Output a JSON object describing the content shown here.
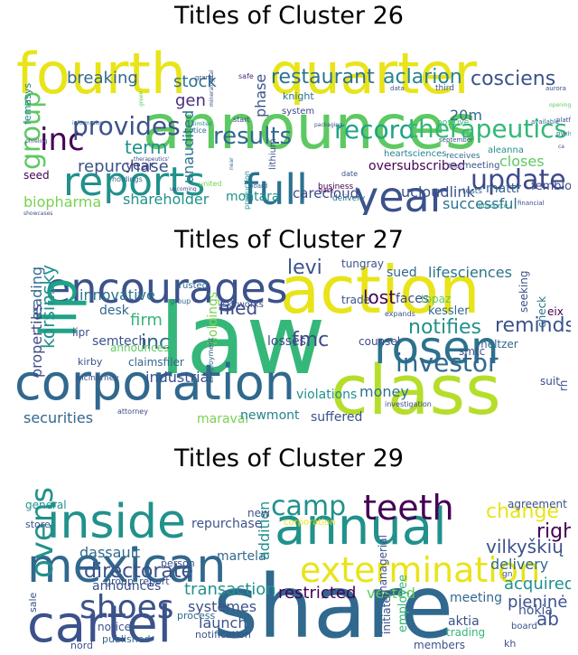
{
  "chart_data": [
    {
      "type": "wordcloud",
      "title": "Titles of Cluster 26",
      "words": [
        {
          "text": "fourth",
          "color": "#E8E419"
        },
        {
          "text": "quarter",
          "color": "#E8E419"
        },
        {
          "text": "announces",
          "color": "#5EC962"
        },
        {
          "text": "full",
          "color": "#2C728E"
        },
        {
          "text": "year",
          "color": "#3B528B"
        },
        {
          "text": "reports",
          "color": "#21918C"
        },
        {
          "text": "inc",
          "color": "#440154"
        },
        {
          "text": "group",
          "color": "#5EC962"
        },
        {
          "text": "provides",
          "color": "#3B528B"
        },
        {
          "text": "results",
          "color": "#31688E"
        },
        {
          "text": "record",
          "color": "#20A387"
        },
        {
          "text": "therapeutics",
          "color": "#35B779"
        },
        {
          "text": "update",
          "color": "#3E4A89"
        },
        {
          "text": "repurchase",
          "color": "#3B528B"
        },
        {
          "text": "term",
          "color": "#21918C"
        },
        {
          "text": "restaurant",
          "color": "#2C728E"
        },
        {
          "text": "aclarion",
          "color": "#26828E"
        },
        {
          "text": "cosciens",
          "color": "#3B528B"
        },
        {
          "text": "stock",
          "color": "#2C728E"
        },
        {
          "text": "breaking",
          "color": "#31688E"
        },
        {
          "text": "gen",
          "color": "#472D7B"
        },
        {
          "text": "phase",
          "color": "#3B528B"
        },
        {
          "text": "unaudited",
          "color": "#2C728E"
        },
        {
          "text": "shareholder",
          "color": "#21918C"
        },
        {
          "text": "biopharma",
          "color": "#7AD151"
        },
        {
          "text": "closes",
          "color": "#5EC962"
        },
        {
          "text": "oversubscribed",
          "color": "#440154"
        },
        {
          "text": "mattr",
          "color": "#31688E"
        },
        {
          "text": "fembloc",
          "color": "#3E4A89"
        },
        {
          "text": "successful",
          "color": "#2C728E"
        },
        {
          "text": "ucloudlink",
          "color": "#3B528B"
        },
        {
          "text": "carecloud",
          "color": "#3E4A89"
        },
        {
          "text": "montara",
          "color": "#21918C"
        },
        {
          "text": "20m",
          "color": "#31688E"
        },
        {
          "text": "seed",
          "color": "#440154"
        },
        {
          "text": "year",
          "color": "#433E85"
        },
        {
          "text": "femasys",
          "color": "#26828E"
        },
        {
          "text": "knight",
          "color": "#2C728E"
        },
        {
          "text": "system",
          "color": "#3E4A89"
        },
        {
          "text": "heartsciences",
          "color": "#26828E"
        },
        {
          "text": "aleanna",
          "color": "#21918C"
        },
        {
          "text": "meeting",
          "color": "#3B528B"
        },
        {
          "text": "receives",
          "color": "#31688E"
        },
        {
          "text": "business",
          "color": "#440154"
        },
        {
          "text": "delivery",
          "color": "#2C728E"
        },
        {
          "text": "lithium",
          "color": "#3B528B"
        },
        {
          "text": "production",
          "color": "#21918C"
        },
        {
          "text": "holdings",
          "color": "#31688E"
        },
        {
          "text": "notice",
          "color": "#2C728E"
        },
        {
          "text": "third",
          "color": "#3B528B"
        },
        {
          "text": "positive",
          "color": "#35B779"
        },
        {
          "text": "tests",
          "color": "#31688E"
        },
        {
          "text": "date",
          "color": "#3B528B"
        },
        {
          "text": "united",
          "color": "#7AD151"
        },
        {
          "text": "start",
          "color": "#3E4A89"
        },
        {
          "text": "safe",
          "color": "#472D7B"
        },
        {
          "text": "grand",
          "color": "#3B528B"
        },
        {
          "text": "financial",
          "color": "#3B528B"
        },
        {
          "text": "altisource",
          "color": "#21918C"
        },
        {
          "text": "base",
          "color": "#440154"
        },
        {
          "text": "board",
          "color": "#31688E"
        },
        {
          "text": "final",
          "color": "#3B528B"
        },
        {
          "text": "september",
          "color": "#3B528B"
        },
        {
          "text": "platform",
          "color": "#3E4A89"
        },
        {
          "text": "available",
          "color": "#31688E"
        },
        {
          "text": "aurora",
          "color": "#3B528B"
        },
        {
          "text": "data",
          "color": "#3B528B"
        },
        {
          "text": "pyxis",
          "color": "#31688E"
        },
        {
          "text": "upcoming",
          "color": "#3E4A89"
        },
        {
          "text": "showcases",
          "color": "#3B528B"
        },
        {
          "text": "information",
          "color": "#31688E"
        },
        {
          "text": "phreling",
          "color": "#3B528B"
        },
        {
          "text": "mineralogical",
          "color": "#3E4A89"
        },
        {
          "text": "limited",
          "color": "#21918C"
        },
        {
          "text": "green",
          "color": "#5EC962"
        },
        {
          "text": "packaging",
          "color": "#3B528B"
        },
        {
          "text": "near",
          "color": "#31688E"
        },
        {
          "text": "therapeutics'",
          "color": "#3E4A89"
        },
        {
          "text": "ca",
          "color": "#3B528B"
        },
        {
          "text": "opening",
          "color": "#5EC962"
        }
      ]
    },
    {
      "type": "wordcloud",
      "title": "Titles of Cluster 27",
      "words": [
        {
          "text": "law",
          "color": "#35B779"
        },
        {
          "text": "action",
          "color": "#E8E419"
        },
        {
          "text": "class",
          "color": "#B5DE2B"
        },
        {
          "text": "corporation",
          "color": "#31688E"
        },
        {
          "text": "encourages",
          "color": "#3B528B"
        },
        {
          "text": "rosen",
          "color": "#2C728E"
        },
        {
          "text": "llp",
          "color": "#20A387"
        },
        {
          "text": "investor",
          "color": "#31688E"
        },
        {
          "text": "notifies",
          "color": "#21918C"
        },
        {
          "text": "reminds",
          "color": "#3B528B"
        },
        {
          "text": "fmc",
          "color": "#3E4A89"
        },
        {
          "text": "inc",
          "color": "#31688E"
        },
        {
          "text": "firm",
          "color": "#35B779"
        },
        {
          "text": "filed",
          "color": "#3E4A89"
        },
        {
          "text": "levi",
          "color": "#3B528B"
        },
        {
          "text": "lifesciences",
          "color": "#2C728E"
        },
        {
          "text": "sued",
          "color": "#31688E"
        },
        {
          "text": "tungray",
          "color": "#3B528B"
        },
        {
          "text": "innovative",
          "color": "#2C728E"
        },
        {
          "text": "korsinsky",
          "color": "#21918C"
        },
        {
          "text": "leading",
          "color": "#31688E"
        },
        {
          "text": "properties",
          "color": "#3E4A89"
        },
        {
          "text": "industrial",
          "color": "#3B528B"
        },
        {
          "text": "securities",
          "color": "#31688E"
        },
        {
          "text": "maravai",
          "color": "#7AD151"
        },
        {
          "text": "newmont",
          "color": "#26828E"
        },
        {
          "text": "suffered",
          "color": "#3B528B"
        },
        {
          "text": "money",
          "color": "#2C728E"
        },
        {
          "text": "violations",
          "color": "#21918C"
        },
        {
          "text": "losses",
          "color": "#3E4A89"
        },
        {
          "text": "holdings",
          "color": "#7AD151"
        },
        {
          "text": "semtech",
          "color": "#3B528B"
        },
        {
          "text": "desk",
          "color": "#31688E"
        },
        {
          "text": "iipr",
          "color": "#3E4A89"
        },
        {
          "text": "claimsfiler",
          "color": "#31688E"
        },
        {
          "text": "announces",
          "color": "#5EC962"
        },
        {
          "text": "kirby",
          "color": "#3B528B"
        },
        {
          "text": "lost",
          "color": "#440154"
        },
        {
          "text": "faces",
          "color": "#3E4A89"
        },
        {
          "text": "trade",
          "color": "#3B528B"
        },
        {
          "text": "kessler",
          "color": "#31688E"
        },
        {
          "text": "topaz",
          "color": "#5EC962"
        },
        {
          "text": "smtc",
          "color": "#3B528B"
        },
        {
          "text": "meltzer",
          "color": "#31688E"
        },
        {
          "text": "check",
          "color": "#2C728E"
        },
        {
          "text": "suit",
          "color": "#3B528B"
        },
        {
          "text": "rh",
          "color": "#3B528B"
        },
        {
          "text": "counsel",
          "color": "#3E4A89"
        },
        {
          "text": "skyworks",
          "color": "#3B528B"
        },
        {
          "text": "trusted",
          "color": "#31688E"
        },
        {
          "text": "mcinerney",
          "color": "#3B528B"
        },
        {
          "text": "attorney",
          "color": "#3E4A89"
        },
        {
          "text": "employment",
          "color": "#31688E"
        },
        {
          "text": "expands",
          "color": "#3B528B"
        },
        {
          "text": "investigation",
          "color": "#3E4A89"
        },
        {
          "text": "group",
          "color": "#31688E"
        },
        {
          "text": "seeking",
          "color": "#3B528B"
        },
        {
          "text": "eix",
          "color": "#440154"
        }
      ]
    },
    {
      "type": "wordcloud",
      "title": "Titles of Cluster 29",
      "words": [
        {
          "text": "share",
          "color": "#31688E"
        },
        {
          "text": "annual",
          "color": "#21918C"
        },
        {
          "text": "mexican",
          "color": "#31688E"
        },
        {
          "text": "cartel",
          "color": "#3B528B"
        },
        {
          "text": "inside",
          "color": "#21918C"
        },
        {
          "text": "extermination",
          "color": "#E8E419"
        },
        {
          "text": "teeth",
          "color": "#440154"
        },
        {
          "text": "ovens",
          "color": "#21918C"
        },
        {
          "text": "shoes",
          "color": "#3B528B"
        },
        {
          "text": "camp",
          "color": "#21918C"
        },
        {
          "text": "directorate",
          "color": "#3B528B"
        },
        {
          "text": "change",
          "color": "#E8E419"
        },
        {
          "text": "right",
          "color": "#440154"
        },
        {
          "text": "vilkyškių",
          "color": "#3B528B"
        },
        {
          "text": "delivery",
          "color": "#31688E"
        },
        {
          "text": "acquired",
          "color": "#21918C"
        },
        {
          "text": "pieninė",
          "color": "#3B528B"
        },
        {
          "text": "ab",
          "color": "#3B528B"
        },
        {
          "text": "transaction",
          "color": "#21918C"
        },
        {
          "text": "restricted",
          "color": "#440154"
        },
        {
          "text": "vested",
          "color": "#5EC962"
        },
        {
          "text": "addition",
          "color": "#21918C"
        },
        {
          "text": "dassault",
          "color": "#31688E"
        },
        {
          "text": "systèmes",
          "color": "#3B528B"
        },
        {
          "text": "launch",
          "color": "#3B528B"
        },
        {
          "text": "announces",
          "color": "#3B528B"
        },
        {
          "text": "martela",
          "color": "#31688E"
        },
        {
          "text": "repurchase",
          "color": "#3B528B"
        },
        {
          "text": "meeting",
          "color": "#31688E"
        },
        {
          "text": "aktia",
          "color": "#3B528B"
        },
        {
          "text": "nokia",
          "color": "#3B528B"
        },
        {
          "text": "agreement",
          "color": "#3B528B"
        },
        {
          "text": "group",
          "color": "#3B528B"
        },
        {
          "text": "report",
          "color": "#3B528B"
        },
        {
          "text": "process",
          "color": "#31688E"
        },
        {
          "text": "notice",
          "color": "#3B528B"
        },
        {
          "text": "published",
          "color": "#31688E"
        },
        {
          "text": "notification",
          "color": "#3B528B"
        },
        {
          "text": "employee",
          "color": "#35B779"
        },
        {
          "text": "initiated",
          "color": "#3B528B"
        },
        {
          "text": "managerial",
          "color": "#3B528B"
        },
        {
          "text": "trading",
          "color": "#35B779"
        },
        {
          "text": "members",
          "color": "#3B528B"
        },
        {
          "text": "board",
          "color": "#3B528B"
        },
        {
          "text": "general",
          "color": "#21918C"
        },
        {
          "text": "store",
          "color": "#3B528B"
        },
        {
          "text": "sale",
          "color": "#3B528B"
        },
        {
          "text": "nord",
          "color": "#3B528B"
        },
        {
          "text": "new",
          "color": "#3B528B"
        },
        {
          "text": "corporation",
          "color": "#E8E419"
        },
        {
          "text": "person",
          "color": "#3B528B"
        },
        {
          "text": "gn",
          "color": "#3B528B"
        },
        {
          "text": "kh",
          "color": "#3B528B"
        }
      ]
    }
  ]
}
